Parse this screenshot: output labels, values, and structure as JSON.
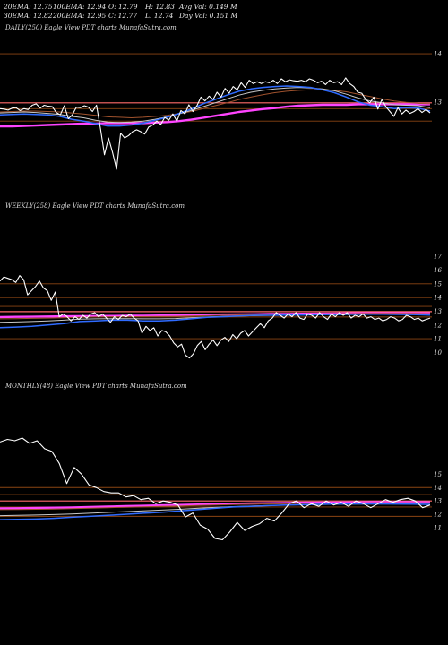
{
  "header": {
    "ema20": "20EMA: 12.75",
    "ema30": "30EMA: 12.82",
    "ema100": "100EMA: 12.94",
    "ema200": "200EMA: 12.95",
    "open": "O: 12.79",
    "close": "C: 12.77",
    "high": "H: 12.83",
    "low": "L: 12.74",
    "avg_vol": "Avg Vol: 0.149 M",
    "day_vol": "Day Vol: 0.151 M"
  },
  "colors": {
    "background": "#000000",
    "price": "#ffffff",
    "ema_fast": "#2f6bff",
    "ema_mid": "#c8c8c8",
    "ema_slow": "#a0522d",
    "ema_long": "#ff44ff",
    "level_line": "#8b4513",
    "level_highlight": "#ff6a6a"
  },
  "chart_data": [
    {
      "type": "line",
      "title": "DAILY(250) Eagle  View  PDT charts MunafaSutra.com",
      "yticks": [
        "14",
        "13"
      ],
      "ytick_values": [
        14,
        13
      ],
      "ylim": [
        11.58,
        14.15
      ],
      "grid": false,
      "series": [
        {
          "key": "price",
          "values": [
            12.86,
            12.85,
            12.83,
            12.87,
            12.88,
            12.82,
            12.86,
            12.84,
            12.93,
            12.96,
            12.87,
            12.93,
            12.91,
            12.9,
            12.78,
            12.73,
            12.92,
            12.65,
            12.73,
            12.89,
            12.88,
            12.92,
            12.89,
            12.8,
            12.93,
            12.45,
            11.9,
            12.25,
            11.95,
            11.6,
            12.35,
            12.25,
            12.3,
            12.38,
            12.42,
            12.38,
            12.33,
            12.48,
            12.52,
            12.6,
            12.53,
            12.68,
            12.62,
            12.75,
            12.6,
            12.82,
            12.75,
            12.94,
            12.8,
            12.92,
            13.1,
            13.02,
            13.12,
            13.05,
            13.2,
            13.1,
            13.28,
            13.18,
            13.32,
            13.25,
            13.4,
            13.3,
            13.45,
            13.38,
            13.42,
            13.38,
            13.42,
            13.4,
            13.45,
            13.38,
            13.48,
            13.42,
            13.46,
            13.44,
            13.43,
            13.45,
            13.42,
            13.48,
            13.45,
            13.4,
            13.43,
            13.36,
            13.45,
            13.4,
            13.42,
            13.36,
            13.5,
            13.38,
            13.32,
            13.2,
            13.18,
            13.05,
            12.98,
            13.1,
            12.85,
            13.05,
            12.9,
            12.8,
            12.7,
            12.88,
            12.75,
            12.83,
            12.76,
            12.8,
            12.86,
            12.78,
            12.84,
            12.77
          ]
        },
        {
          "key": "ema_fast",
          "values": [
            12.73,
            12.74,
            12.75,
            12.74,
            12.73,
            12.7,
            12.64,
            12.6,
            12.55,
            12.5,
            12.5,
            12.52,
            12.56,
            12.62,
            12.68,
            12.76,
            12.85,
            12.96,
            13.05,
            13.14,
            13.22,
            13.27,
            13.3,
            13.32,
            13.33,
            13.32,
            13.3,
            13.25,
            13.19,
            13.1,
            13.0,
            12.93,
            12.9,
            12.86,
            12.88,
            12.87,
            12.81
          ]
        },
        {
          "key": "ema_mid",
          "values": [
            12.77,
            12.78,
            12.79,
            12.78,
            12.76,
            12.74,
            12.7,
            12.67,
            12.62,
            12.58,
            12.57,
            12.58,
            12.6,
            12.64,
            12.69,
            12.75,
            12.82,
            12.9,
            12.98,
            13.06,
            13.14,
            13.2,
            13.24,
            13.27,
            13.29,
            13.3,
            13.29,
            13.27,
            13.23,
            13.16,
            13.08,
            13.02,
            12.98,
            12.94,
            12.93,
            12.92,
            12.88
          ]
        },
        {
          "key": "ema_slow",
          "values": [
            12.79,
            12.8,
            12.81,
            12.81,
            12.8,
            12.79,
            12.77,
            12.75,
            12.72,
            12.69,
            12.68,
            12.67,
            12.68,
            12.7,
            12.72,
            12.76,
            12.8,
            12.86,
            12.92,
            12.98,
            13.05,
            13.1,
            13.15,
            13.19,
            13.22,
            13.24,
            13.25,
            13.25,
            13.24,
            13.21,
            13.16,
            13.11,
            13.06,
            13.02,
            12.99,
            12.97,
            12.96
          ]
        },
        {
          "key": "ema_long",
          "values": [
            12.49,
            12.49,
            12.5,
            12.51,
            12.52,
            12.53,
            12.54,
            12.55,
            12.55,
            12.56,
            12.56,
            12.56,
            12.56,
            12.57,
            12.58,
            12.6,
            12.63,
            12.67,
            12.71,
            12.75,
            12.79,
            12.82,
            12.85,
            12.87,
            12.9,
            12.92,
            12.93,
            12.94,
            12.94,
            12.94,
            12.95,
            12.95,
            12.95,
            12.95,
            12.95,
            12.95,
            12.95
          ]
        }
      ],
      "levels": [
        {
          "value": 14.0,
          "color": "#8b4513"
        },
        {
          "value": 13.06,
          "color": "#8b4513"
        },
        {
          "value": 12.98,
          "color": "#ff6a6a"
        },
        {
          "value": 12.86,
          "color": "#8b4513"
        },
        {
          "value": 12.6,
          "color": "#8b4513"
        }
      ]
    },
    {
      "type": "line",
      "title": "WEEKLY(258) Eagle  View  PDT charts MunafaSutra.com",
      "yticks": [
        "17",
        "16",
        "15",
        "14",
        "13",
        "12",
        "11",
        "10"
      ],
      "ytick_values": [
        17,
        16,
        15,
        14,
        13,
        12,
        11,
        10
      ],
      "ylim": [
        9.05,
        17.4
      ],
      "grid": false,
      "series": [
        {
          "key": "price",
          "values": [
            15.2,
            15.5,
            15.4,
            15.3,
            15.1,
            15.6,
            15.3,
            14.2,
            14.5,
            14.8,
            15.2,
            14.7,
            14.5,
            13.8,
            14.4,
            12.6,
            12.8,
            12.6,
            12.3,
            12.6,
            12.4,
            12.7,
            12.5,
            12.8,
            12.9,
            12.6,
            12.8,
            12.5,
            12.2,
            12.6,
            12.4,
            12.7,
            12.6,
            12.8,
            12.5,
            12.3,
            11.4,
            11.9,
            11.6,
            11.8,
            11.2,
            11.6,
            11.5,
            11.2,
            10.7,
            10.4,
            10.6,
            9.8,
            9.6,
            9.9,
            10.5,
            10.8,
            10.2,
            10.6,
            10.9,
            10.5,
            10.9,
            11.1,
            10.8,
            11.3,
            11.0,
            11.4,
            11.6,
            11.2,
            11.5,
            11.8,
            12.1,
            11.8,
            12.3,
            12.5,
            12.9,
            12.7,
            12.5,
            12.8,
            12.6,
            12.9,
            12.5,
            12.4,
            12.8,
            12.7,
            12.5,
            12.9,
            12.6,
            12.4,
            12.8,
            12.6,
            12.9,
            12.7,
            12.9,
            12.5,
            12.7,
            12.6,
            12.8,
            12.5,
            12.6,
            12.4,
            12.5,
            12.3,
            12.4,
            12.6,
            12.5,
            12.3,
            12.4,
            12.7,
            12.6,
            12.4,
            12.5,
            12.3,
            12.4,
            12.5
          ]
        },
        {
          "key": "ema_fast",
          "values": [
            11.8,
            11.85,
            11.9,
            12.0,
            12.1,
            12.25,
            12.3,
            12.35,
            12.35,
            12.3,
            12.3,
            12.35,
            12.45,
            12.55,
            12.6,
            12.65,
            12.7,
            12.7,
            12.72,
            12.73,
            12.75,
            12.76,
            12.78,
            12.78,
            12.78,
            12.77,
            12.76,
            12.72
          ]
        },
        {
          "key": "ema_mid",
          "values": [
            12.2,
            12.22,
            12.25,
            12.3,
            12.35,
            12.42,
            12.45,
            12.46,
            12.46,
            12.45,
            12.45,
            12.47,
            12.52,
            12.58,
            12.62,
            12.65,
            12.68,
            12.7,
            12.72,
            12.73,
            12.74,
            12.75,
            12.76,
            12.77,
            12.77,
            12.77,
            12.76,
            12.75
          ]
        },
        {
          "key": "ema_slow",
          "values": [
            12.45,
            12.46,
            12.48,
            12.5,
            12.53,
            12.56,
            12.58,
            12.6,
            12.6,
            12.61,
            12.62,
            12.63,
            12.65,
            12.68,
            12.71,
            12.73,
            12.75,
            12.77,
            12.78,
            12.8,
            12.81,
            12.82,
            12.83,
            12.84,
            12.84,
            12.84,
            12.84,
            12.83
          ]
        },
        {
          "key": "ema_long",
          "values": [
            12.58,
            12.59,
            12.6,
            12.62,
            12.63,
            12.64,
            12.65,
            12.66,
            12.67,
            12.68,
            12.69,
            12.7,
            12.72,
            12.74,
            12.76,
            12.77,
            12.78,
            12.8,
            12.81,
            12.82,
            12.83,
            12.84,
            12.85,
            12.86,
            12.86,
            12.86,
            12.86,
            12.86
          ]
        }
      ],
      "levels": [
        {
          "value": 15.0,
          "color": "#8b4513"
        },
        {
          "value": 14.0,
          "color": "#8b4513"
        },
        {
          "value": 13.35,
          "color": "#8b4513"
        },
        {
          "value": 12.97,
          "color": "#ff6a6a"
        },
        {
          "value": 12.58,
          "color": "#8b4513"
        },
        {
          "value": 11.0,
          "color": "#8b4513"
        }
      ]
    },
    {
      "type": "line",
      "title": "MONTHLY(48) Eagle  View  PDT charts MunafaSutra.com",
      "yticks": [
        "15",
        "14",
        "13",
        "12",
        "11"
      ],
      "ytick_values": [
        15,
        14,
        13,
        12,
        11
      ],
      "ylim": [
        9.6,
        18.3
      ],
      "grid": false,
      "series": [
        {
          "key": "price",
          "values": [
            17.4,
            17.6,
            17.5,
            17.7,
            17.3,
            17.5,
            16.9,
            16.7,
            15.8,
            14.3,
            15.5,
            15.0,
            14.2,
            14.0,
            13.7,
            13.6,
            13.6,
            13.3,
            13.4,
            13.1,
            13.2,
            12.8,
            13.0,
            12.9,
            12.7,
            11.8,
            12.1,
            11.2,
            10.9,
            10.2,
            10.1,
            10.7,
            11.4,
            10.8,
            11.1,
            11.3,
            11.7,
            11.5,
            12.1,
            12.8,
            13.0,
            12.5,
            12.8,
            12.6,
            13.0,
            12.7,
            12.9,
            12.6,
            13.0,
            12.8,
            12.5,
            12.8,
            13.1,
            12.9,
            13.1,
            13.2,
            13.0,
            12.5,
            12.7
          ]
        },
        {
          "key": "ema_fast",
          "values": [
            11.6,
            11.62,
            11.65,
            11.7,
            11.78,
            11.85,
            11.92,
            12.0,
            12.08,
            12.15,
            12.25,
            12.35,
            12.45,
            12.55,
            12.6,
            12.65,
            12.7,
            12.72,
            12.75,
            12.77,
            12.78,
            12.78,
            12.77,
            12.76,
            12.74
          ]
        },
        {
          "key": "ema_mid",
          "values": [
            11.9,
            11.92,
            11.95,
            11.98,
            12.02,
            12.08,
            12.14,
            12.2,
            12.26,
            12.32,
            12.38,
            12.45,
            12.52,
            12.58,
            12.62,
            12.66,
            12.7,
            12.72,
            12.74,
            12.75,
            12.76,
            12.77,
            12.77,
            12.76,
            12.75
          ]
        },
        {
          "key": "ema_slow",
          "values": [
            12.35,
            12.36,
            12.38,
            12.4,
            12.43,
            12.46,
            12.5,
            12.53,
            12.56,
            12.59,
            12.62,
            12.66,
            12.7,
            12.73,
            12.76,
            12.78,
            12.8,
            12.82,
            12.83,
            12.84,
            12.85,
            12.86,
            12.86,
            12.86,
            12.85
          ]
        },
        {
          "key": "ema_long",
          "values": [
            12.45,
            12.46,
            12.48,
            12.5,
            12.52,
            12.55,
            12.58,
            12.61,
            12.64,
            12.67,
            12.7,
            12.73,
            12.76,
            12.79,
            12.81,
            12.83,
            12.85,
            12.87,
            12.88,
            12.89,
            12.9,
            12.91,
            12.91,
            12.91,
            12.9
          ]
        }
      ],
      "levels": [
        {
          "value": 14.0,
          "color": "#8b4513"
        },
        {
          "value": 13.48,
          "color": "#8b4513"
        },
        {
          "value": 13.0,
          "color": "#ff6a6a"
        },
        {
          "value": 12.55,
          "color": "#8b4513"
        },
        {
          "value": 11.85,
          "color": "#8b4513"
        }
      ]
    }
  ]
}
